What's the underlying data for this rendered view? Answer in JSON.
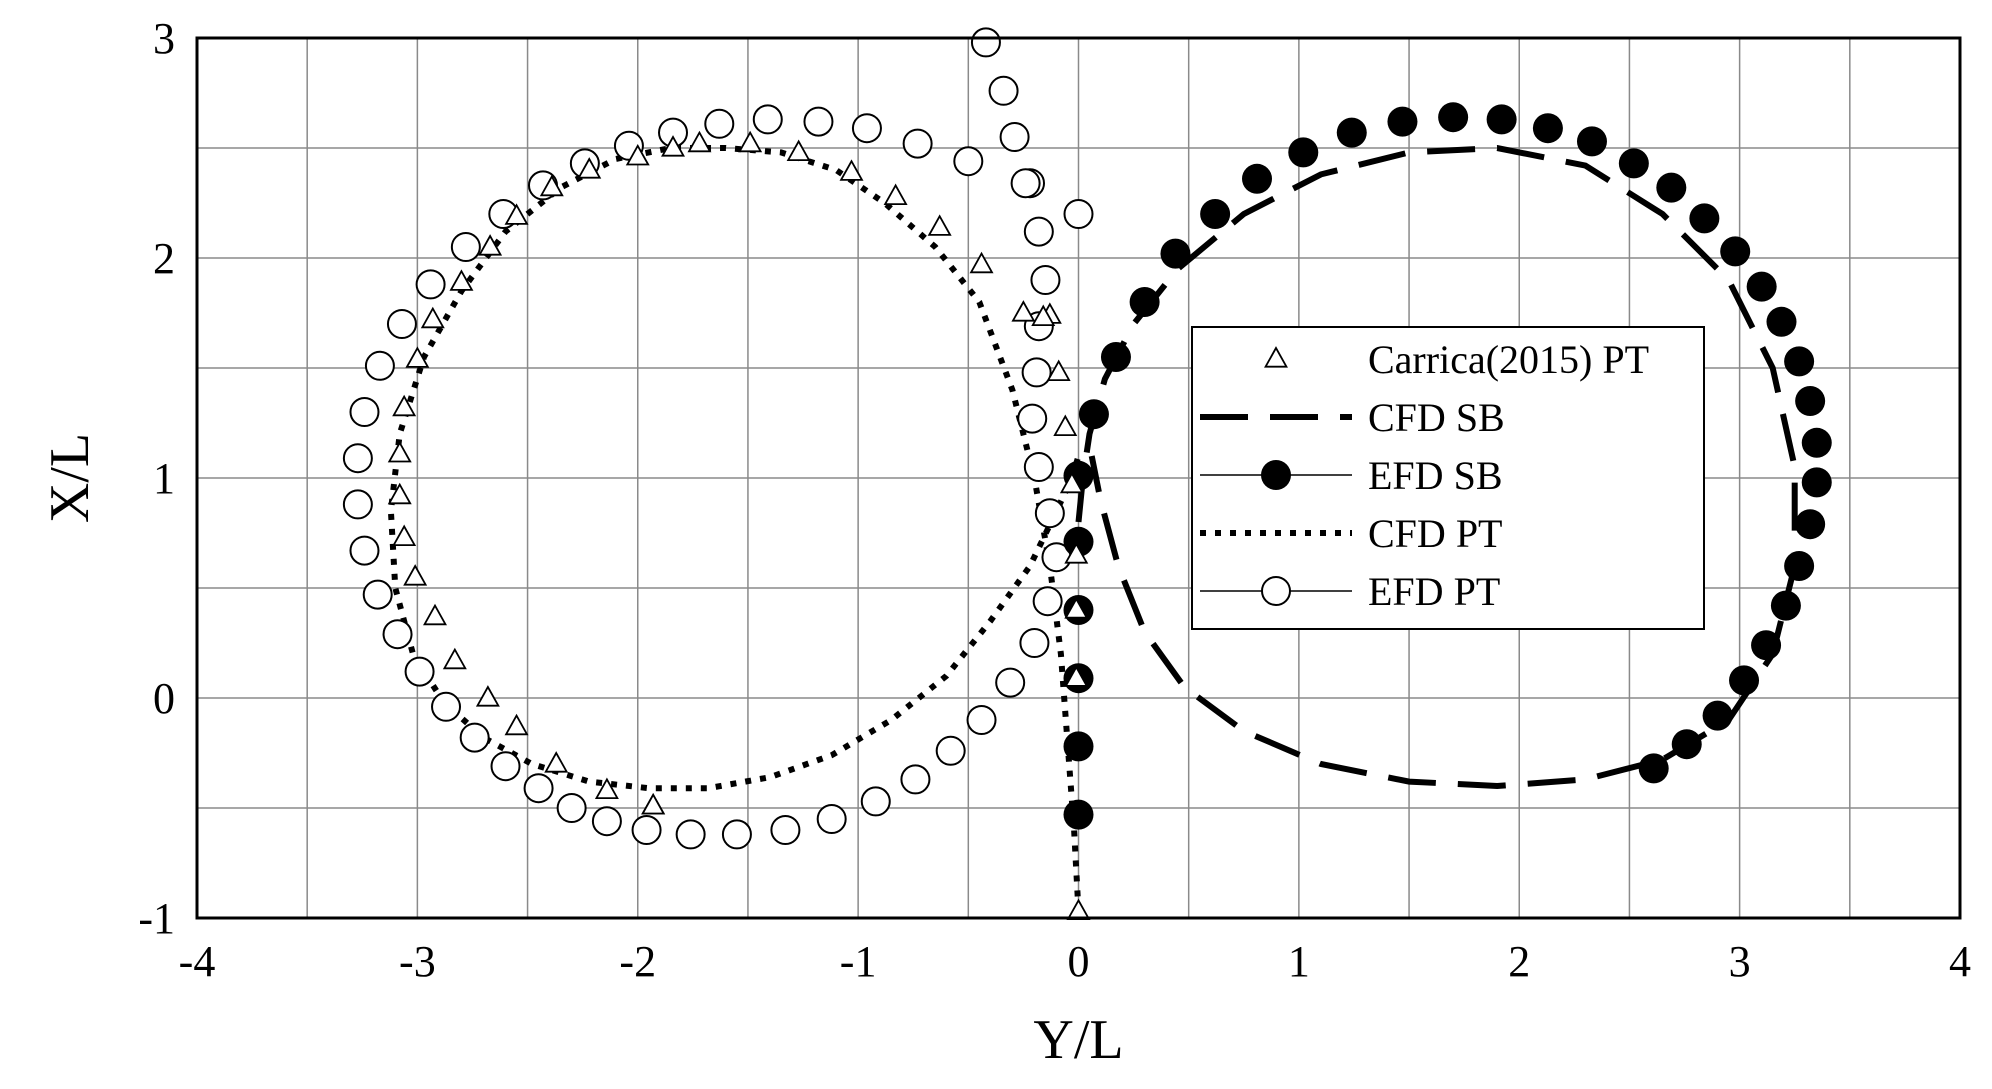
{
  "chart_data": {
    "type": "scatter",
    "xlabel": "Y/L",
    "ylabel": "X/L",
    "xlim": [
      -4,
      4
    ],
    "ylim": [
      -1,
      3
    ],
    "xticks": [
      "-4",
      "-3",
      "-2",
      "-1",
      "0",
      "1",
      "2",
      "3",
      "4"
    ],
    "yticks": [
      "-1",
      "0",
      "1",
      "2",
      "3"
    ],
    "grid": true,
    "minor_grid_step": 0.5,
    "legend_position": "center-right",
    "series": [
      {
        "name": "Carrica(2015) PT",
        "style": "open-triangle",
        "color": "#000000",
        "x": [
          0.0,
          -0.01,
          -0.01,
          -0.01,
          -0.03,
          -0.06,
          -0.09,
          -0.13,
          -0.16,
          -0.25,
          -0.44,
          -0.63,
          -0.83,
          -1.03,
          -1.27,
          -1.49,
          -1.72,
          -1.84,
          -2.0,
          -2.22,
          -2.39,
          -2.55,
          -2.67,
          -2.8,
          -2.93,
          -3.0,
          -3.06,
          -3.08,
          -3.08,
          -3.06,
          -3.01,
          -2.92,
          -2.83,
          -2.68,
          -2.55,
          -2.37,
          -2.14,
          -1.93,
          -1.93
        ],
        "y": [
          -0.97,
          0.09,
          0.4,
          0.65,
          0.97,
          1.23,
          1.48,
          1.74,
          1.73,
          1.75,
          1.97,
          2.14,
          2.28,
          2.39,
          2.48,
          2.52,
          2.52,
          2.5,
          2.46,
          2.4,
          2.32,
          2.19,
          2.05,
          1.89,
          1.72,
          1.54,
          1.32,
          1.11,
          0.92,
          0.73,
          0.55,
          0.37,
          0.17,
          0.0,
          -0.13,
          -0.3,
          -0.42,
          -0.49,
          -0.49
        ]
      },
      {
        "name": "CFD SB",
        "style": "long-dash",
        "color": "#000000",
        "x": [
          0.0,
          0.02,
          0.05,
          0.12,
          0.25,
          0.45,
          0.75,
          1.1,
          1.5,
          1.9,
          2.3,
          2.65,
          2.95,
          3.15,
          3.25,
          3.25,
          3.15,
          2.95,
          2.65,
          2.3,
          1.9,
          1.5,
          1.1,
          0.75,
          0.48,
          0.3,
          0.18,
          0.1,
          0.06
        ],
        "y": [
          0.8,
          1.0,
          1.2,
          1.45,
          1.7,
          1.95,
          2.2,
          2.38,
          2.48,
          2.5,
          2.42,
          2.2,
          1.9,
          1.5,
          1.05,
          0.6,
          0.2,
          -0.1,
          -0.28,
          -0.37,
          -0.4,
          -0.38,
          -0.3,
          -0.15,
          0.05,
          0.3,
          0.6,
          0.9,
          1.1
        ]
      },
      {
        "name": "EFD SB",
        "style": "filled-circle",
        "color": "#000000",
        "x": [
          0.0,
          0.0,
          0.0,
          0.0,
          0.0,
          0.0,
          0.07,
          0.17,
          0.3,
          0.44,
          0.62,
          0.81,
          1.02,
          1.24,
          1.47,
          1.7,
          1.92,
          2.13,
          2.33,
          2.52,
          2.69,
          2.84,
          2.98,
          3.1,
          3.19,
          3.27,
          3.32,
          3.35,
          3.35,
          3.32,
          3.27,
          3.21,
          3.12,
          3.02,
          2.9,
          2.76,
          2.61
        ],
        "y": [
          -0.53,
          -0.22,
          0.09,
          0.4,
          0.71,
          1.01,
          1.29,
          1.55,
          1.8,
          2.02,
          2.2,
          2.36,
          2.48,
          2.57,
          2.62,
          2.64,
          2.63,
          2.59,
          2.53,
          2.43,
          2.32,
          2.18,
          2.03,
          1.87,
          1.71,
          1.53,
          1.35,
          1.16,
          0.98,
          0.79,
          0.6,
          0.42,
          0.24,
          0.08,
          -0.08,
          -0.21,
          -0.32
        ]
      },
      {
        "name": "CFD PT",
        "style": "dotted",
        "color": "#000000",
        "x": [
          0.0,
          -0.02,
          -0.05,
          -0.08,
          -0.13,
          -0.2,
          -0.3,
          -0.45,
          -0.65,
          -0.88,
          -1.1,
          -1.35,
          -1.6,
          -1.85,
          -2.1,
          -2.35,
          -2.6,
          -2.8,
          -2.97,
          -3.08,
          -3.12,
          -3.1,
          -3.02,
          -2.88,
          -2.7,
          -2.48,
          -2.22,
          -1.95,
          -1.68,
          -1.4,
          -1.12,
          -0.85,
          -0.6,
          -0.4,
          -0.22,
          -0.1,
          -0.03,
          0.0
        ],
        "y": [
          -0.97,
          -0.6,
          -0.2,
          0.2,
          0.6,
          1.0,
          1.4,
          1.8,
          2.05,
          2.25,
          2.4,
          2.48,
          2.5,
          2.5,
          2.45,
          2.32,
          2.12,
          1.85,
          1.55,
          1.2,
          0.85,
          0.5,
          0.2,
          -0.02,
          -0.18,
          -0.3,
          -0.38,
          -0.41,
          -0.41,
          -0.36,
          -0.26,
          -0.1,
          0.1,
          0.35,
          0.6,
          0.85,
          1.0,
          1.1
        ]
      },
      {
        "name": "EFD PT",
        "style": "open-circle",
        "color": "#000000",
        "x": [
          -0.42,
          -0.34,
          -0.29,
          -0.22,
          -0.18,
          -0.15,
          -0.18,
          -0.19,
          -0.21,
          -0.18,
          -0.13,
          -0.1,
          -0.14,
          -0.2,
          -0.31,
          -0.44,
          -0.58,
          -0.74,
          -0.92,
          -1.12,
          -1.33,
          -1.55,
          -1.76,
          -1.96,
          -2.14,
          -2.3,
          -2.45,
          -2.6,
          -2.74,
          -2.87,
          -2.99,
          -3.09,
          -3.18,
          -3.24,
          -3.27,
          -3.27,
          -3.24,
          -3.17,
          -3.07,
          -2.94,
          -2.78,
          -2.61,
          -2.43,
          -2.24,
          -2.04,
          -1.84,
          -1.63,
          -1.41,
          -1.18,
          -0.96,
          -0.73,
          -0.5,
          -0.24,
          -0.0
        ],
        "y": [
          2.98,
          2.76,
          2.55,
          2.34,
          2.12,
          1.9,
          1.69,
          1.48,
          1.27,
          1.05,
          0.84,
          0.64,
          0.44,
          0.25,
          0.07,
          -0.1,
          -0.24,
          -0.37,
          -0.47,
          -0.55,
          -0.6,
          -0.62,
          -0.62,
          -0.6,
          -0.56,
          -0.5,
          -0.41,
          -0.31,
          -0.18,
          -0.04,
          0.12,
          0.29,
          0.47,
          0.67,
          0.88,
          1.09,
          1.3,
          1.51,
          1.7,
          1.88,
          2.05,
          2.2,
          2.33,
          2.43,
          2.51,
          2.57,
          2.61,
          2.63,
          2.62,
          2.59,
          2.52,
          2.44,
          2.34,
          2.2
        ]
      }
    ]
  }
}
